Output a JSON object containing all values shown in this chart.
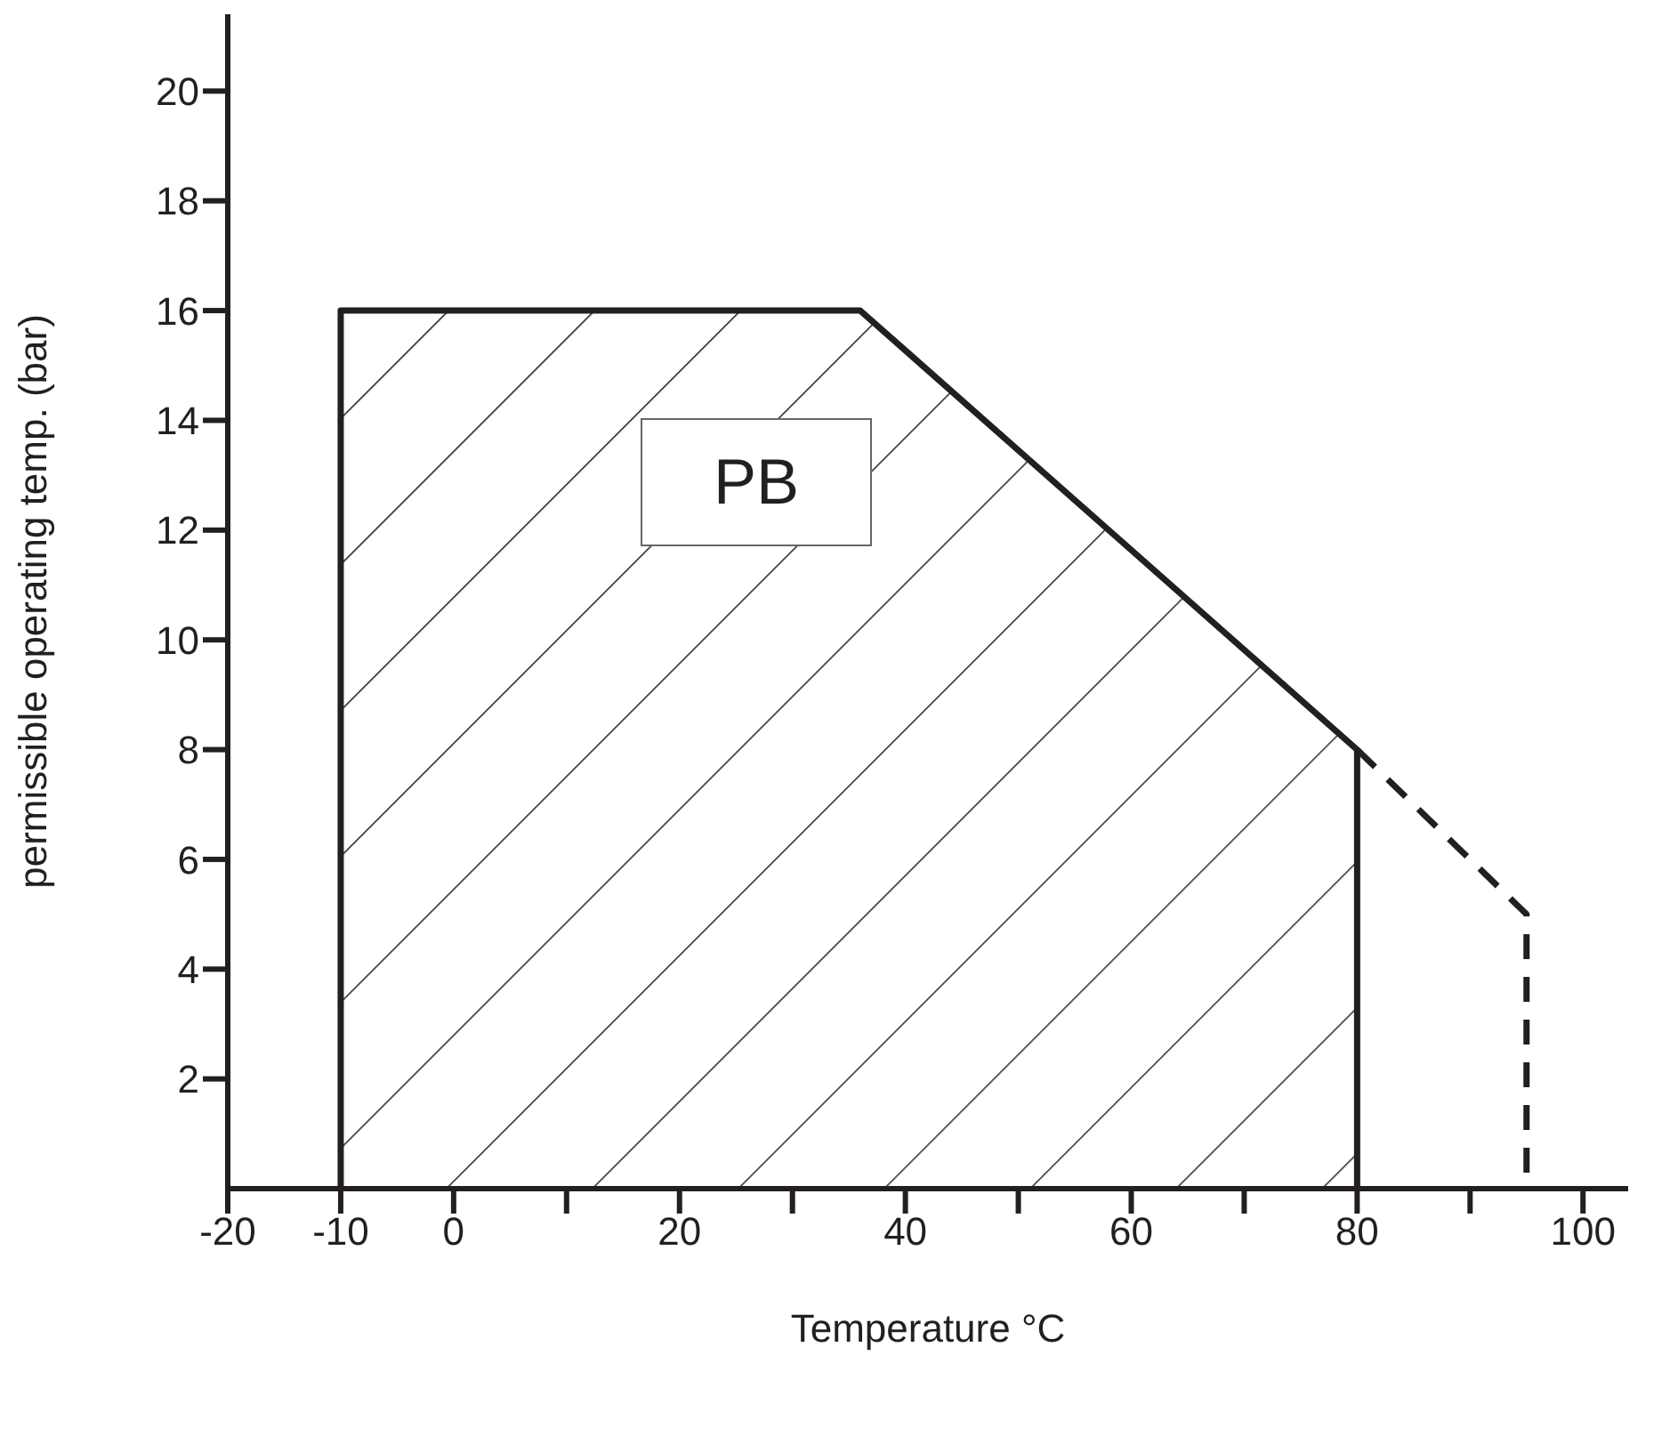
{
  "chart_data": {
    "type": "area",
    "xlabel": "Temperature °C",
    "ylabel": "permissible operating temp. (bar)",
    "annotations": [
      "PB"
    ],
    "xlim": [
      -20,
      104
    ],
    "ylim": [
      0,
      21.4
    ],
    "xticks": [
      -20,
      -10,
      0,
      {
        "value": 10,
        "label": null
      },
      20,
      {
        "value": 30,
        "label": null
      },
      40,
      {
        "value": 50,
        "label": null
      },
      60,
      {
        "value": 70,
        "label": null
      },
      80,
      {
        "value": 90,
        "label": null
      },
      100
    ],
    "yticks": [
      2,
      4,
      6,
      8,
      10,
      12,
      14,
      16,
      18,
      20
    ],
    "grid": false,
    "legend": false,
    "marker": "none",
    "series": [
      {
        "color": "#231f20",
        "x": [
          -10,
          -10,
          36,
          80,
          80
        ],
        "values": [
          0,
          16,
          16,
          8,
          0
        ],
        "line_style": "solid"
      },
      {
        "type": "line",
        "color": "#231f20",
        "x": [
          80,
          95,
          95
        ],
        "values": [
          8,
          5,
          0
        ],
        "line_style": "dashed"
      }
    ]
  }
}
